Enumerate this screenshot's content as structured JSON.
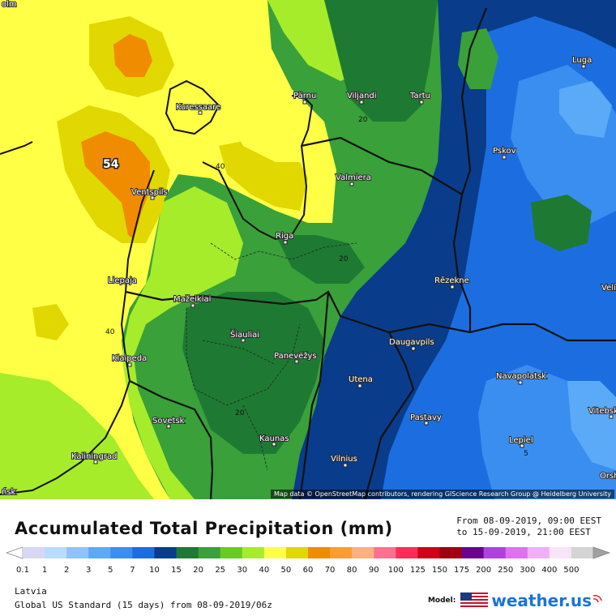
{
  "map": {
    "attribution": "Map data © OpenStreetMap contributors, rendering GIScience Research Group @ Heidelberg University",
    "max_label": "54",
    "cities": [
      {
        "name": "Kuressaare"
      },
      {
        "name": "Pärnu"
      },
      {
        "name": "Viljandi"
      },
      {
        "name": "Tartu"
      },
      {
        "name": "Luga"
      },
      {
        "name": "Pskov"
      },
      {
        "name": "Valmiera"
      },
      {
        "name": "Ventspils"
      },
      {
        "name": "Riga"
      },
      {
        "name": "Liepaja"
      },
      {
        "name": "Rēzekne"
      },
      {
        "name": "Mažeikiai"
      },
      {
        "name": "Šiauliai"
      },
      {
        "name": "Panevėžys"
      },
      {
        "name": "Klaipeda"
      },
      {
        "name": "Daugavpils"
      },
      {
        "name": "Utena"
      },
      {
        "name": "Navapolatsk"
      },
      {
        "name": "Sovetsk"
      },
      {
        "name": "Kaunas"
      },
      {
        "name": "Pastavy"
      },
      {
        "name": "Lepiel"
      },
      {
        "name": "Vitebsk"
      },
      {
        "name": "Kaliningrad"
      },
      {
        "name": "Vilnius"
      },
      {
        "name": "Velí"
      },
      {
        "name": "Orsh"
      },
      {
        "name": "ńsk"
      },
      {
        "name": "olm"
      }
    ],
    "contour_labels": [
      "40",
      "40",
      "20",
      "20",
      "20",
      "5"
    ]
  },
  "legend": {
    "title": "Accumulated Total Precipitation (mm)",
    "from": "From 08-09-2019, 09:00 EEST",
    "to": "to 15-09-2019, 21:00 EEST",
    "ticks": [
      "0.1",
      "1",
      "2",
      "3",
      "5",
      "7",
      "10",
      "15",
      "20",
      "25",
      "30",
      "40",
      "50",
      "60",
      "70",
      "80",
      "90",
      "100",
      "125",
      "150",
      "175",
      "200",
      "250",
      "300",
      "400",
      "500"
    ],
    "colors": [
      "#d8d8f2",
      "#b8dcff",
      "#8cc4ff",
      "#5aaaf8",
      "#3a8ef0",
      "#1c6ee0",
      "#0a3c8c",
      "#1e7a32",
      "#3aa03a",
      "#66cc22",
      "#a6ec2a",
      "#ffff46",
      "#e0d800",
      "#f08c00",
      "#ff9c30",
      "#ffb080",
      "#ff7090",
      "#ff2c5a",
      "#d00018",
      "#a00010",
      "#6c0090",
      "#b040e0",
      "#e070f0",
      "#f0b0f8",
      "#f8e4fa",
      "#d4d4d4"
    ]
  },
  "region": "Latvia",
  "model_run": "Global US Standard (15 days) from 08-09-2019/06z",
  "brand": {
    "label": "Model:",
    "name": "weather.us"
  }
}
